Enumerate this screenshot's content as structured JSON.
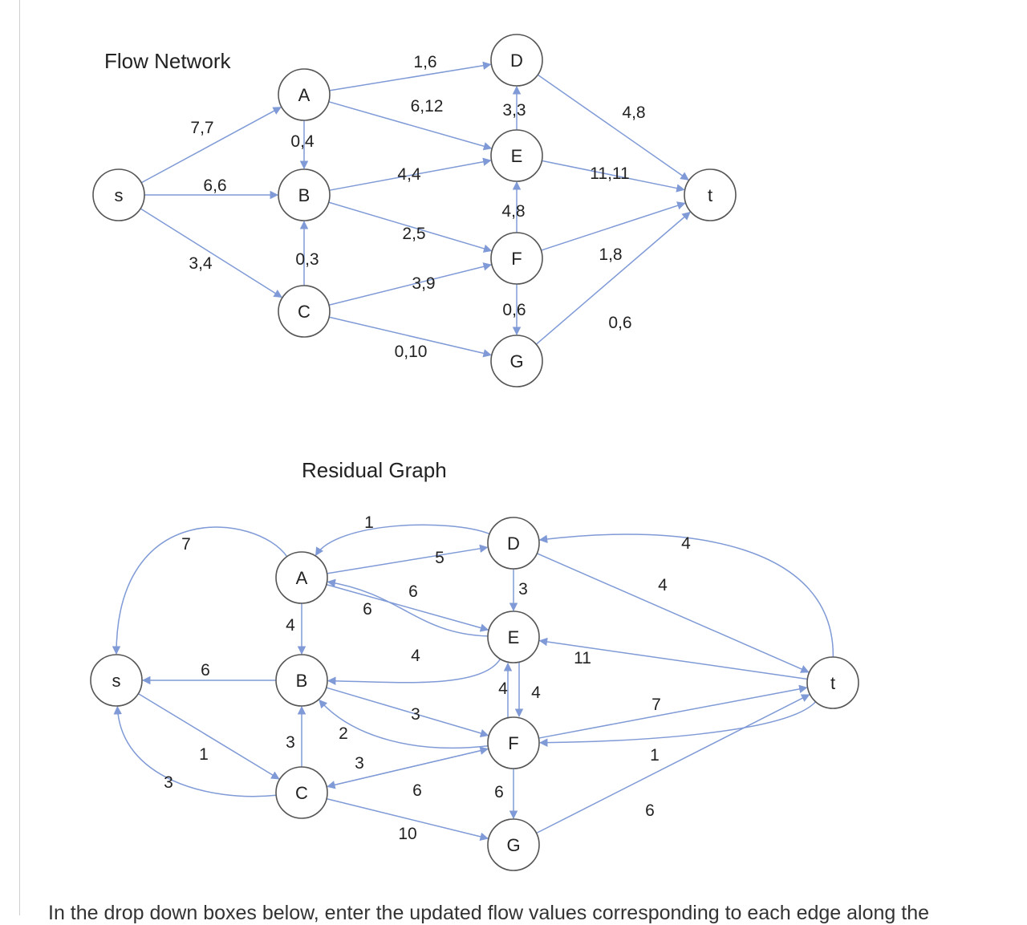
{
  "flow_network": {
    "title": "Flow Network",
    "nodes": [
      {
        "id": "s",
        "label": "s"
      },
      {
        "id": "A",
        "label": "A"
      },
      {
        "id": "B",
        "label": "B"
      },
      {
        "id": "C",
        "label": "C"
      },
      {
        "id": "D",
        "label": "D"
      },
      {
        "id": "E",
        "label": "E"
      },
      {
        "id": "F",
        "label": "F"
      },
      {
        "id": "G",
        "label": "G"
      },
      {
        "id": "t",
        "label": "t"
      }
    ],
    "edges": [
      {
        "from": "s",
        "to": "A",
        "label": "7,7"
      },
      {
        "from": "s",
        "to": "B",
        "label": "6,6"
      },
      {
        "from": "s",
        "to": "C",
        "label": "3,4"
      },
      {
        "from": "A",
        "to": "B",
        "label": "0,4"
      },
      {
        "from": "C",
        "to": "B",
        "label": "0,3"
      },
      {
        "from": "A",
        "to": "D",
        "label": "1,6"
      },
      {
        "from": "A",
        "to": "E",
        "label": "6,12"
      },
      {
        "from": "B",
        "to": "E",
        "label": "4,4"
      },
      {
        "from": "B",
        "to": "F",
        "label": "2,5"
      },
      {
        "from": "C",
        "to": "F",
        "label": "3,9"
      },
      {
        "from": "C",
        "to": "G",
        "label": "0,10"
      },
      {
        "from": "E",
        "to": "D",
        "label": "3,3"
      },
      {
        "from": "F",
        "to": "E",
        "label": "4,8"
      },
      {
        "from": "F",
        "to": "G",
        "label": "0,6"
      },
      {
        "from": "D",
        "to": "t",
        "label": "4,8"
      },
      {
        "from": "E",
        "to": "t",
        "label": "11,11"
      },
      {
        "from": "F",
        "to": "t",
        "label": "1,8"
      },
      {
        "from": "G",
        "to": "t",
        "label": "0,6"
      }
    ]
  },
  "residual_graph": {
    "title": "Residual Graph",
    "nodes": [
      {
        "id": "s",
        "label": "s"
      },
      {
        "id": "A",
        "label": "A"
      },
      {
        "id": "B",
        "label": "B"
      },
      {
        "id": "C",
        "label": "C"
      },
      {
        "id": "D",
        "label": "D"
      },
      {
        "id": "E",
        "label": "E"
      },
      {
        "id": "F",
        "label": "F"
      },
      {
        "id": "G",
        "label": "G"
      },
      {
        "id": "t",
        "label": "t"
      }
    ],
    "edges": [
      {
        "from": "A",
        "to": "s",
        "label": "7"
      },
      {
        "from": "B",
        "to": "s",
        "label": "6"
      },
      {
        "from": "s",
        "to": "C",
        "label": "1"
      },
      {
        "from": "C",
        "to": "s",
        "label": "3"
      },
      {
        "from": "D",
        "to": "A",
        "label": "1"
      },
      {
        "from": "A",
        "to": "D",
        "label": "5"
      },
      {
        "from": "A",
        "to": "E",
        "label": "6"
      },
      {
        "from": "E",
        "to": "A",
        "label": "6"
      },
      {
        "from": "A",
        "to": "B",
        "label": "4"
      },
      {
        "from": "E",
        "to": "B",
        "label": "4"
      },
      {
        "from": "B",
        "to": "F",
        "label": "3"
      },
      {
        "from": "F",
        "to": "B",
        "label": "2"
      },
      {
        "from": "C",
        "to": "B",
        "label": "3"
      },
      {
        "from": "F",
        "to": "C",
        "label": "3"
      },
      {
        "from": "C",
        "to": "F",
        "label": "6"
      },
      {
        "from": "C",
        "to": "G",
        "label": "10"
      },
      {
        "from": "D",
        "to": "E",
        "label": "3"
      },
      {
        "from": "E",
        "to": "F",
        "label": "4"
      },
      {
        "from": "F",
        "to": "E",
        "label": "4"
      },
      {
        "from": "F",
        "to": "G",
        "label": "6"
      },
      {
        "from": "D",
        "to": "t",
        "label": "4"
      },
      {
        "from": "t",
        "to": "D",
        "label": "4"
      },
      {
        "from": "t",
        "to": "E",
        "label": "11"
      },
      {
        "from": "F",
        "to": "t",
        "label": "7"
      },
      {
        "from": "t",
        "to": "F",
        "label": "1"
      },
      {
        "from": "G",
        "to": "t",
        "label": "6"
      }
    ]
  },
  "instruction_text": "In the drop down boxes below, enter the updated flow values corresponding to each edge along the",
  "colors": {
    "edge": "#7f9ad6",
    "node_stroke": "#555555",
    "text": "#222222"
  }
}
